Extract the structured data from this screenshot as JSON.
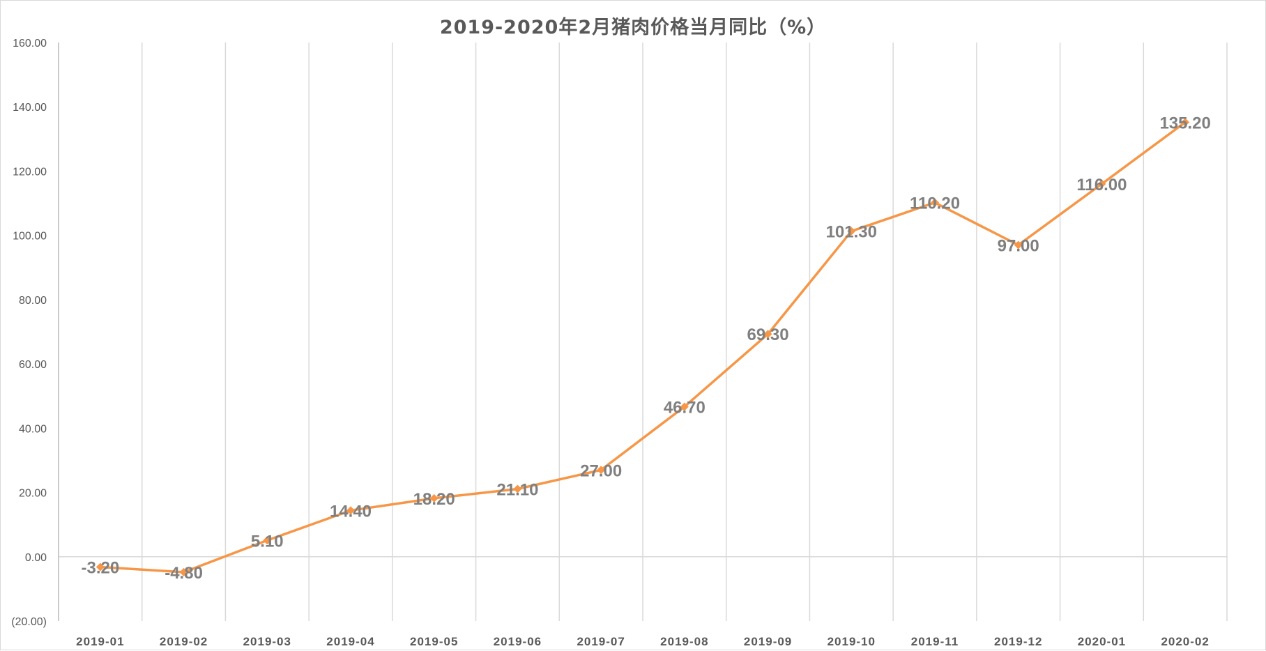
{
  "chart_data": {
    "type": "line",
    "title": "2019-2020年2月猪肉价格当月同比（%）",
    "categories": [
      "2019-01",
      "2019-02",
      "2019-03",
      "2019-04",
      "2019-05",
      "2019-06",
      "2019-07",
      "2019-08",
      "2019-09",
      "2019-10",
      "2019-11",
      "2019-12",
      "2020-01",
      "2020-02"
    ],
    "series": [
      {
        "values": [
          -3.2,
          -4.8,
          5.1,
          14.4,
          18.2,
          21.1,
          27.0,
          46.7,
          69.3,
          101.3,
          110.2,
          97.0,
          116.0,
          135.2
        ]
      }
    ],
    "data_labels": [
      "-3.20",
      "-4.80",
      "5.10",
      "14.40",
      "18.20",
      "21.10",
      "27.00",
      "46.70",
      "69.30",
      "101.30",
      "110.20",
      "97.00",
      "116.00",
      "135.20"
    ],
    "y_ticks": [
      "160.00",
      "140.00",
      "120.00",
      "100.00",
      "80.00",
      "60.00",
      "40.00",
      "20.00",
      "0.00",
      "(20.00)"
    ],
    "ylim": [
      -20,
      160
    ],
    "grid": "vertical",
    "legend": "none",
    "colors": {
      "line": "#F79646",
      "marker": "#F79646",
      "grid": "#d9d9d9",
      "axis": "#bfbfbf"
    }
  }
}
